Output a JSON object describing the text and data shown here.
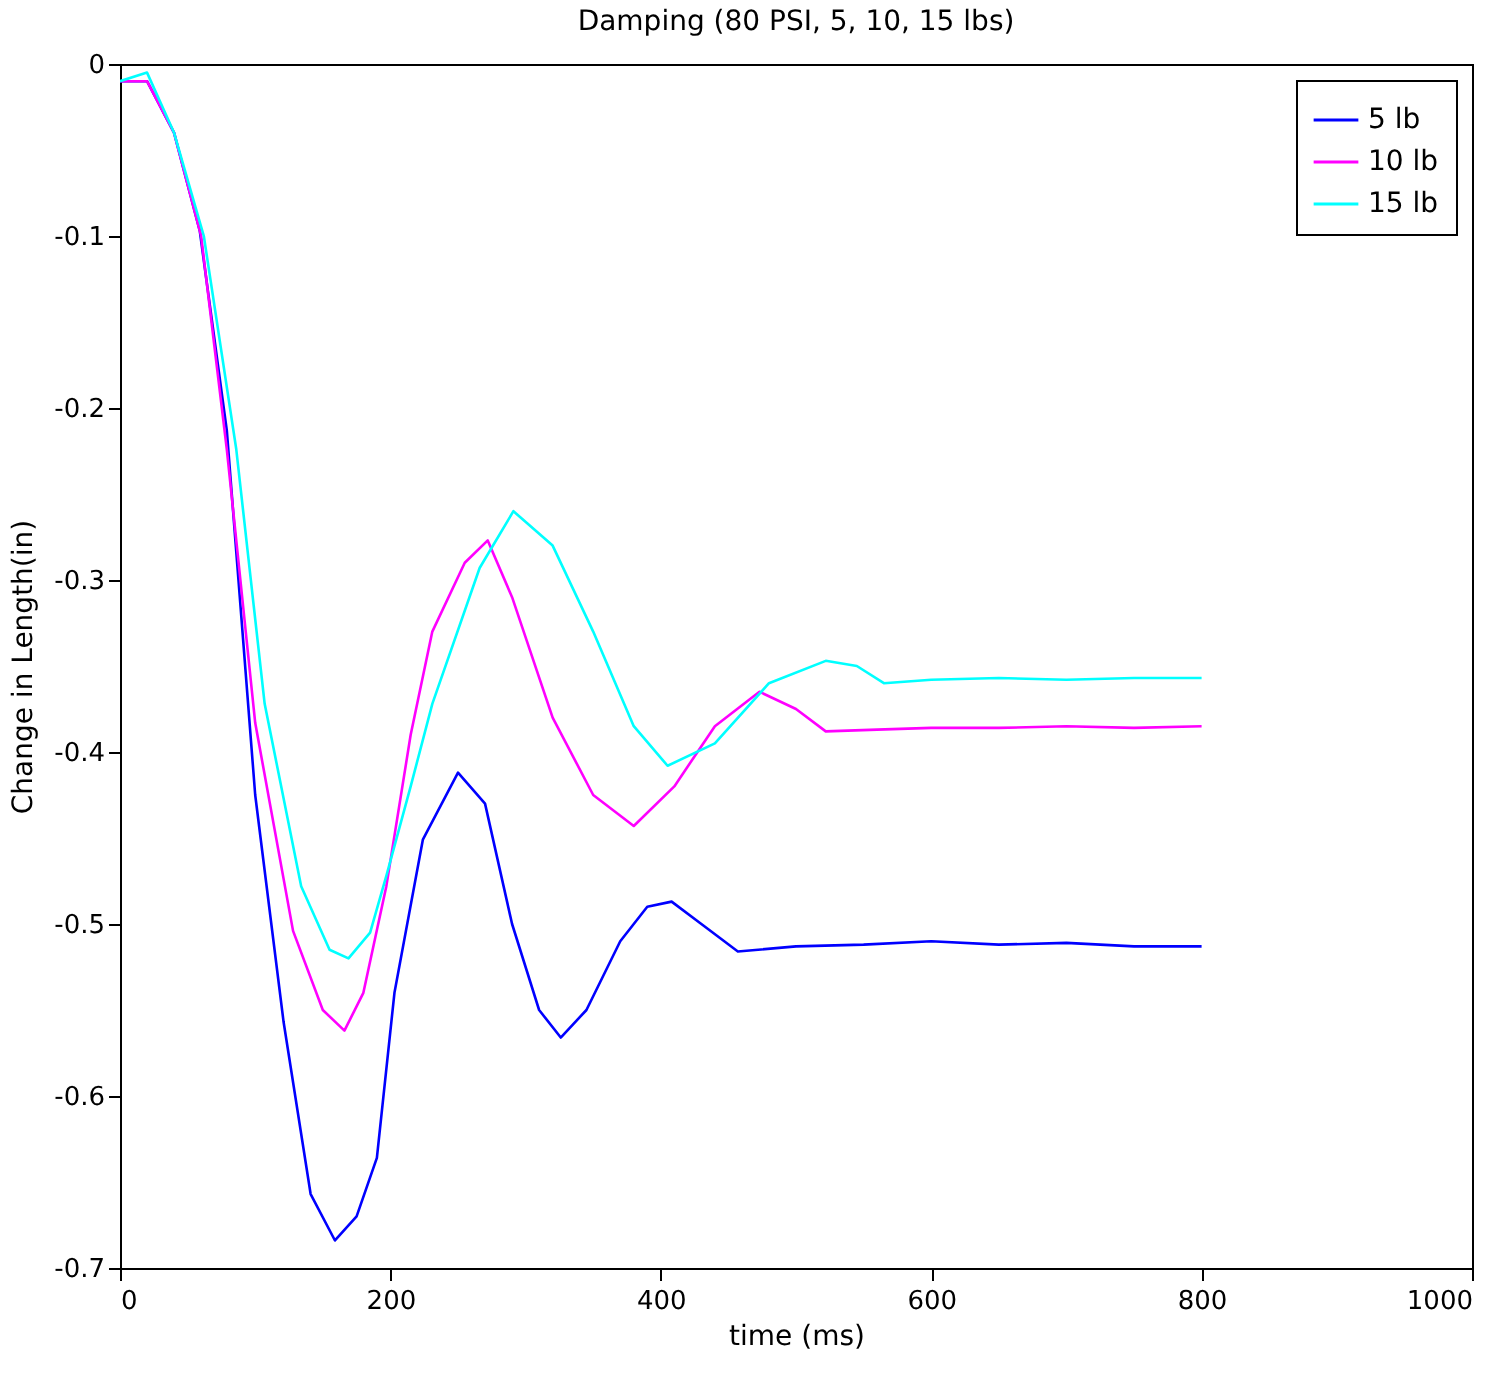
{
  "chart_data": {
    "type": "line",
    "title": "Damping (80 PSI, 5, 10, 15 lbs)",
    "xlabel": "time (ms)",
    "ylabel": "Change in Length(in)",
    "xlim": [
      0,
      1000
    ],
    "ylim": [
      -0.7,
      0
    ],
    "xticks": [
      0,
      200,
      400,
      600,
      800,
      1000
    ],
    "yticks": [
      -0.7,
      -0.6,
      -0.5,
      -0.4,
      -0.3,
      -0.2,
      -0.1,
      0
    ],
    "legend": "top right",
    "line_style": "solid",
    "series": [
      {
        "name": "5 lb",
        "color": "#0000ff",
        "x": [
          0,
          20,
          40,
          59,
          79,
          100,
          121,
          141,
          159,
          175,
          190,
          203,
          224,
          250,
          270,
          290,
          310,
          326,
          345,
          370,
          390,
          408,
          430,
          457,
          500,
          550,
          600,
          650,
          700,
          750,
          800
        ],
        "values": [
          -0.01,
          -0.01,
          -0.04,
          -0.097,
          -0.213,
          -0.425,
          -0.557,
          -0.657,
          -0.684,
          -0.67,
          -0.636,
          -0.54,
          -0.451,
          -0.412,
          -0.43,
          -0.5,
          -0.55,
          -0.566,
          -0.55,
          -0.51,
          -0.49,
          -0.487,
          -0.5,
          -0.516,
          -0.513,
          -0.512,
          -0.51,
          -0.512,
          -0.511,
          -0.513,
          -0.513
        ]
      },
      {
        "name": "10 lb",
        "color": "#ff00ff",
        "x": [
          0,
          20,
          40,
          60,
          79,
          100,
          128,
          150,
          166,
          180,
          197,
          215,
          231,
          255,
          272,
          290,
          320,
          350,
          380,
          410,
          440,
          473,
          500,
          522,
          560,
          600,
          650,
          700,
          750,
          800
        ],
        "values": [
          -0.01,
          -0.01,
          -0.04,
          -0.1,
          -0.224,
          -0.383,
          -0.504,
          -0.55,
          -0.562,
          -0.54,
          -0.478,
          -0.39,
          -0.33,
          -0.29,
          -0.277,
          -0.31,
          -0.38,
          -0.425,
          -0.443,
          -0.42,
          -0.385,
          -0.365,
          -0.375,
          -0.388,
          -0.387,
          -0.386,
          -0.386,
          -0.385,
          -0.386,
          -0.385
        ]
      },
      {
        "name": "15 lb",
        "color": "#00ffff",
        "x": [
          0,
          20,
          40,
          62,
          86,
          107,
          134,
          155,
          169,
          185,
          197,
          215,
          231,
          266,
          291,
          320,
          350,
          380,
          405,
          440,
          480,
          522,
          545,
          565,
          600,
          650,
          700,
          750,
          800
        ],
        "values": [
          -0.01,
          -0.005,
          -0.04,
          -0.1,
          -0.224,
          -0.372,
          -0.478,
          -0.515,
          -0.52,
          -0.505,
          -0.472,
          -0.42,
          -0.372,
          -0.293,
          -0.26,
          -0.28,
          -0.33,
          -0.385,
          -0.408,
          -0.395,
          -0.36,
          -0.347,
          -0.35,
          -0.36,
          -0.358,
          -0.357,
          -0.358,
          -0.357,
          -0.357
        ]
      }
    ]
  }
}
